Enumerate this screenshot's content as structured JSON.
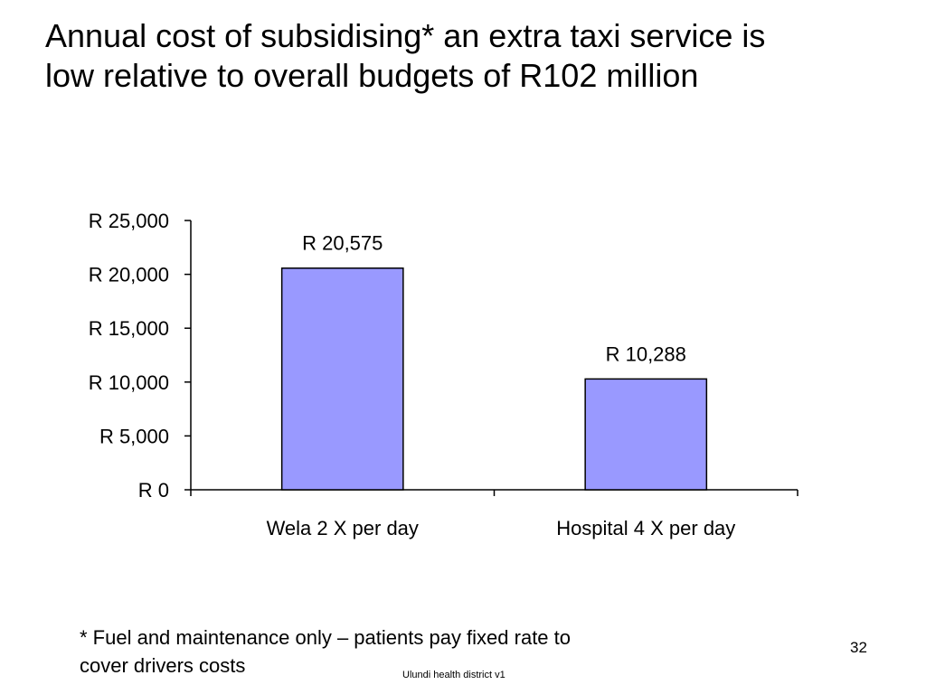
{
  "slide": {
    "title_line1": "Annual cost of subsidising* an extra taxi service is",
    "title_line2": "low relative to overall budgets of R102 million",
    "footnote_line1": "* Fuel and maintenance only – patients pay fixed rate to",
    "footnote_line2": "cover drivers costs",
    "footer": "Ulundi health district v1",
    "page_number": "32"
  },
  "chart_data": {
    "type": "bar",
    "categories": [
      "Wela 2 X per day",
      "Hospital 4 X per day"
    ],
    "values": [
      20575,
      10288
    ],
    "data_labels": [
      "R 20,575",
      "R 10,288"
    ],
    "ylim": [
      0,
      25000
    ],
    "yticks": [
      0,
      5000,
      10000,
      15000,
      20000,
      25000
    ],
    "ytick_labels": [
      "R 0",
      "R 5,000",
      "R 10,000",
      "R 15,000",
      "R 20,000",
      "R 25,000"
    ],
    "title": "",
    "xlabel": "",
    "ylabel": "",
    "grid": false,
    "legend": "none",
    "bar_color": "#9999ff",
    "bar_edge_color": "#000000"
  }
}
